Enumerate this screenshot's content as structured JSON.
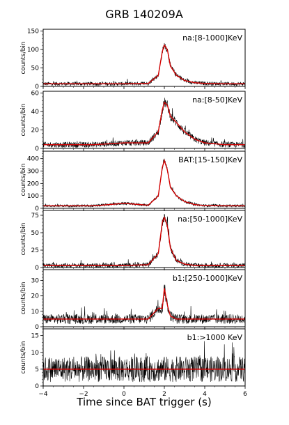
{
  "chart_data": {
    "type": "line",
    "title": "GRB 140209A",
    "xlabel": "Time since BAT trigger (s)",
    "xlim": [
      -4,
      6
    ],
    "x_ticks": [
      -4,
      -2,
      0,
      2,
      4,
      6
    ],
    "x_tick_labels": [
      "−4",
      "−2",
      "0",
      "2",
      "4",
      "6"
    ],
    "grid": false,
    "panels": [
      {
        "label": "na:[8-1000]KeV",
        "ylabel": "counts/bin",
        "ylim": [
          0,
          155
        ],
        "y_ticks": [
          0,
          50,
          100,
          150
        ],
        "background": 7,
        "precursor": 0,
        "peak": 112,
        "noise": 4,
        "series": [
          {
            "name": "",
            "x": [
              -4,
              -1.5,
              0,
              1.2,
              1.7,
              1.9,
              2.0,
              2.15,
              2.3,
              2.6,
              3.0,
              3.5,
              4.0,
              5.0,
              6.0
            ],
            "values": [
              7,
              7,
              7,
              8,
              30,
              95,
              112,
              100,
              55,
              30,
              16,
              10,
              8,
              7,
              7
            ]
          }
        ]
      },
      {
        "label": "na:[8-50]KeV",
        "ylabel": "counts/bin",
        "ylim": [
          0,
          62
        ],
        "y_ticks": [
          0,
          20,
          40,
          60
        ],
        "background": 4,
        "precursor": 3,
        "peak": 50,
        "noise": 2.2,
        "series": [
          {
            "name": "",
            "x": [
              -4,
              -1.5,
              0,
              1.2,
              1.7,
              1.9,
              2.0,
              2.15,
              2.3,
              2.6,
              3.0,
              3.5,
              4.0,
              5.0,
              6.0
            ],
            "values": [
              4,
              4,
              6,
              6,
              18,
              42,
              50,
              47,
              35,
              28,
              18,
              10,
              6,
              4,
              4
            ]
          }
        ]
      },
      {
        "label": "BAT:[15-150]KeV",
        "ylabel": "counts/bin",
        "ylim": [
          0,
          460
        ],
        "y_ticks": [
          0,
          100,
          200,
          300,
          400
        ],
        "background": 20,
        "precursor": 20,
        "peak": 385,
        "noise": 8,
        "series": [
          {
            "name": "",
            "x": [
              -4,
              -1.5,
              0,
              1.2,
              1.7,
              1.9,
              2.0,
              2.15,
              2.3,
              2.6,
              3.0,
              3.5,
              4.0,
              5.0,
              6.0
            ],
            "values": [
              20,
              20,
              40,
              25,
              100,
              330,
              385,
              310,
              170,
              100,
              55,
              30,
              22,
              20,
              20
            ]
          }
        ]
      },
      {
        "label": "na:[50-1000]KeV",
        "ylabel": "counts/bin",
        "ylim": [
          0,
          82
        ],
        "y_ticks": [
          0,
          25,
          50,
          75
        ],
        "background": 3,
        "precursor": 0,
        "peak": 72,
        "noise": 2.5,
        "series": [
          {
            "name": "",
            "x": [
              -4,
              -1.5,
              0,
              1.2,
              1.7,
              1.9,
              2.0,
              2.15,
              2.3,
              2.6,
              3.0,
              3.5,
              4.0,
              5.0,
              6.0
            ],
            "values": [
              3,
              3,
              3,
              4,
              20,
              65,
              72,
              60,
              28,
              10,
              5,
              3,
              3,
              3,
              3
            ]
          }
        ]
      },
      {
        "label": "b1:[250-1000]KeV",
        "ylabel": "counts/bin",
        "ylim": [
          0,
          37
        ],
        "y_ticks": [
          0,
          10,
          20,
          30
        ],
        "background": 5,
        "precursor": 0,
        "peak": 25,
        "noise": 2.2,
        "series": [
          {
            "name": "",
            "x": [
              -4,
              -1.5,
              0,
              1.2,
              1.7,
              1.9,
              2.0,
              2.15,
              2.3,
              2.6,
              3.0,
              3.5,
              4.0,
              5.0,
              6.0
            ],
            "values": [
              5,
              5,
              5,
              5,
              12,
              12,
              25,
              14,
              7,
              5,
              5,
              5,
              5,
              5,
              5
            ]
          }
        ]
      },
      {
        "label": "b1:>1000 KeV",
        "ylabel": "counts/bin",
        "ylim": [
          0,
          17
        ],
        "y_ticks": [
          0,
          5,
          10,
          15
        ],
        "background": 5,
        "precursor": 0,
        "peak": 5,
        "noise": 2.8,
        "series": [
          {
            "name": "",
            "x": [
              -4,
              -1.5,
              0,
              1.2,
              1.7,
              1.9,
              2.0,
              2.15,
              2.3,
              2.6,
              3.0,
              3.5,
              4.0,
              5.0,
              6.0
            ],
            "values": [
              5,
              5,
              5,
              5,
              5,
              5,
              5,
              5,
              5,
              5,
              5,
              5,
              5,
              5,
              5
            ]
          }
        ]
      }
    ],
    "colors": {
      "data": "#000000",
      "model": "#d40000",
      "axis": "#000000"
    }
  }
}
